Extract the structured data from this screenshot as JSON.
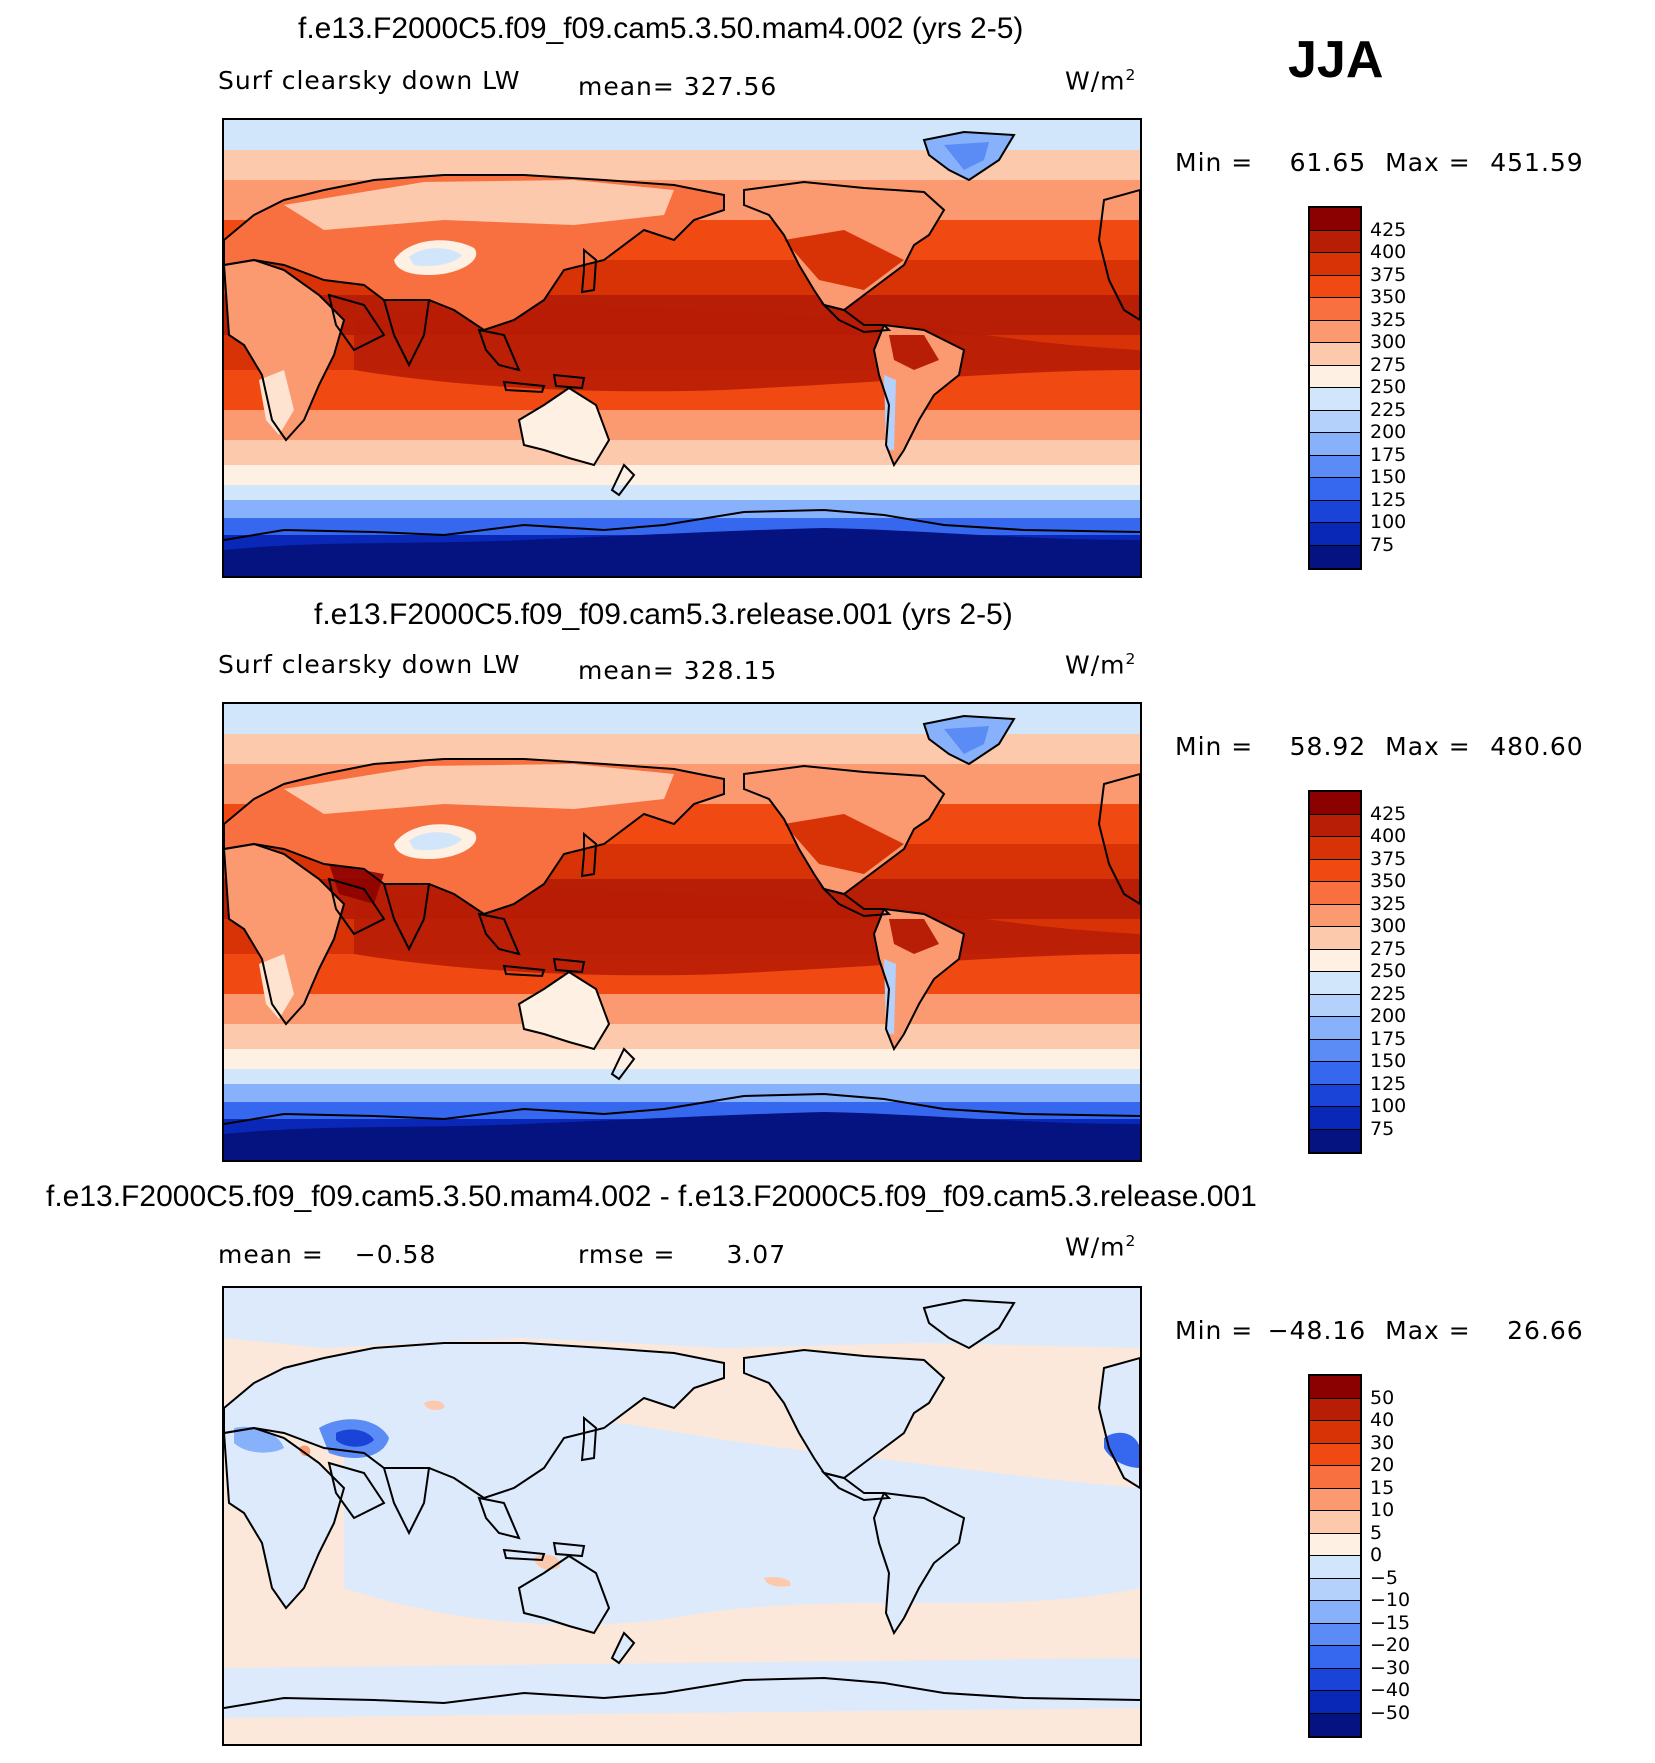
{
  "season": "JJA",
  "panels": [
    {
      "title": "f.e13.F2000C5.f09_f09.cam5.3.50.mam4.002 (yrs 2-5)",
      "variable": "Surf clearsky down LW",
      "stat_text": "mean= 327.56",
      "units": "W/m",
      "units_exp": "2",
      "min_label": "Min =",
      "min": "61.65",
      "max_label": "Max =",
      "max": "451.59"
    },
    {
      "title": "f.e13.F2000C5.f09_f09.cam5.3.release.001 (yrs 2-5)",
      "variable": "Surf clearsky down LW",
      "stat_text": "mean= 328.15",
      "units": "W/m",
      "units_exp": "2",
      "min_label": "Min =",
      "min": "58.92",
      "max_label": "Max =",
      "max": "480.60"
    },
    {
      "title": "f.e13.F2000C5.f09_f09.cam5.3.50.mam4.002 - f.e13.F2000C5.f09_f09.cam5.3.release.001",
      "mean_label": "mean =",
      "mean_value": "−0.58",
      "rmse_label": "rmse =",
      "rmse_value": "3.07",
      "units": "W/m",
      "units_exp": "2",
      "min_label": "Min =",
      "min": "−48.16",
      "max_label": "Max =",
      "max": "26.66"
    }
  ],
  "colorbar_abs": {
    "levels": [
      "425",
      "400",
      "375",
      "350",
      "325",
      "300",
      "275",
      "250",
      "225",
      "200",
      "175",
      "150",
      "125",
      "100",
      "75"
    ],
    "colors": [
      "#8b0000",
      "#b81d05",
      "#d83307",
      "#f04a12",
      "#f97040",
      "#fb9a70",
      "#fdc9ac",
      "#fef0e2",
      "#d2e6fb",
      "#b3d1fb",
      "#87b1fb",
      "#5b8cf6",
      "#3567ef",
      "#1a44d8",
      "#0a28b8",
      "#04137f"
    ]
  },
  "colorbar_diff": {
    "levels": [
      "50",
      "40",
      "30",
      "20",
      "15",
      "10",
      "5",
      "0",
      "−5",
      "−10",
      "−15",
      "−20",
      "−30",
      "−40",
      "−50"
    ],
    "colors": [
      "#8b0000",
      "#b81d05",
      "#d83307",
      "#f04a12",
      "#f97040",
      "#fb9a70",
      "#fdc9ac",
      "#fef0e2",
      "#d2e6fb",
      "#b3d1fb",
      "#87b1fb",
      "#5b8cf6",
      "#3567ef",
      "#1a44d8",
      "#0a28b8",
      "#04137f"
    ]
  },
  "map_colors": {
    "ocean_band_colors": [
      "#d2e6fb",
      "#fdc9ac",
      "#fb9a70",
      "#f04a12",
      "#d83307",
      "#b81d05",
      "#d83307",
      "#f04a12",
      "#fb9a70",
      "#fdc9ac",
      "#fef0e2",
      "#d2e6fb",
      "#87b1fb",
      "#3567ef",
      "#0a28b8",
      "#04137f"
    ],
    "diff_bg": "#fce8da",
    "diff_land": "#dceafb"
  },
  "chart_data": [
    {
      "type": "heatmap",
      "title": "f.e13.F2000C5.f09_f09.cam5.3.50.mam4.002 (yrs 2-5)",
      "variable": "Surf clearsky down LW",
      "units": "W/m2",
      "mean": 327.56,
      "min": 61.65,
      "max": 451.59,
      "contour_levels": [
        75,
        100,
        125,
        150,
        175,
        200,
        225,
        250,
        275,
        300,
        325,
        350,
        375,
        400,
        425
      ]
    },
    {
      "type": "heatmap",
      "title": "f.e13.F2000C5.f09_f09.cam5.3.release.001 (yrs 2-5)",
      "variable": "Surf clearsky down LW",
      "units": "W/m2",
      "mean": 328.15,
      "min": 58.92,
      "max": 480.6,
      "contour_levels": [
        75,
        100,
        125,
        150,
        175,
        200,
        225,
        250,
        275,
        300,
        325,
        350,
        375,
        400,
        425
      ]
    },
    {
      "type": "heatmap",
      "title": "f.e13.F2000C5.f09_f09.cam5.3.50.mam4.002 - f.e13.F2000C5.f09_f09.cam5.3.release.001",
      "units": "W/m2",
      "mean": -0.58,
      "rmse": 3.07,
      "min": -48.16,
      "max": 26.66,
      "contour_levels": [
        -50,
        -40,
        -30,
        -20,
        -15,
        -10,
        -5,
        0,
        5,
        10,
        15,
        20,
        30,
        40,
        50
      ]
    }
  ]
}
